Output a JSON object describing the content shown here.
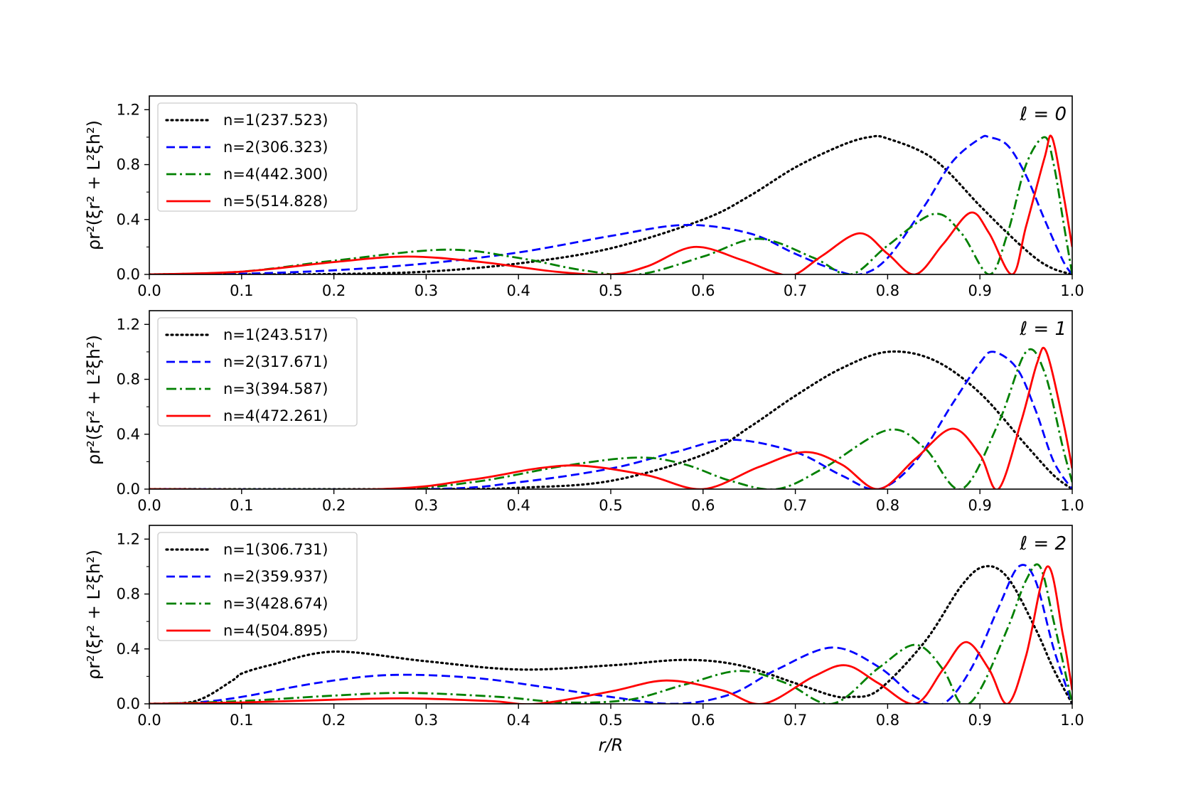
{
  "chart_data": [
    {
      "type": "line",
      "annotation": "ℓ = 0",
      "ylabel": "ρr²(ξr² + L²ξh²)",
      "xlabel": "",
      "xlim": [
        0.0,
        1.0
      ],
      "ylim": [
        0.0,
        1.3
      ],
      "xticks": [
        "0.0",
        "0.1",
        "0.2",
        "0.3",
        "0.4",
        "0.5",
        "0.6",
        "0.7",
        "0.8",
        "0.9",
        "1.0"
      ],
      "yticks": [
        "0.0",
        "0.4",
        "0.8",
        "1.2"
      ],
      "legend": "top-left",
      "series": [
        {
          "name": "n=1(237.523)",
          "color": "#000000",
          "style": "dotted",
          "x": [
            0.0,
            0.1,
            0.2,
            0.3,
            0.4,
            0.5,
            0.6,
            0.65,
            0.7,
            0.75,
            0.78,
            0.8,
            0.85,
            0.9,
            0.93,
            0.96,
            0.98,
            1.0
          ],
          "y": [
            0.0,
            0.0,
            0.003,
            0.02,
            0.08,
            0.19,
            0.4,
            0.57,
            0.78,
            0.94,
            1.0,
            0.99,
            0.84,
            0.5,
            0.3,
            0.12,
            0.04,
            0.0
          ]
        },
        {
          "name": "n=2(306.323)",
          "color": "#0000ff",
          "style": "dashed",
          "x": [
            0.0,
            0.1,
            0.2,
            0.3,
            0.4,
            0.5,
            0.58,
            0.65,
            0.7,
            0.74,
            0.77,
            0.8,
            0.84,
            0.87,
            0.9,
            0.91,
            0.93,
            0.95,
            0.97,
            0.99,
            1.0
          ],
          "y": [
            0.0,
            0.005,
            0.03,
            0.08,
            0.16,
            0.28,
            0.36,
            0.3,
            0.15,
            0.04,
            0.0,
            0.12,
            0.5,
            0.82,
            0.99,
            1.0,
            0.94,
            0.72,
            0.4,
            0.1,
            0.0
          ]
        },
        {
          "name": "n=4(442.300)",
          "color": "#008000",
          "style": "dashdot",
          "x": [
            0.0,
            0.1,
            0.2,
            0.32,
            0.4,
            0.47,
            0.53,
            0.6,
            0.66,
            0.72,
            0.76,
            0.8,
            0.85,
            0.88,
            0.91,
            0.93,
            0.95,
            0.97,
            0.98,
            0.99,
            1.0
          ],
          "y": [
            0.0,
            0.02,
            0.1,
            0.18,
            0.12,
            0.03,
            0.0,
            0.13,
            0.26,
            0.12,
            0.0,
            0.21,
            0.44,
            0.3,
            0.0,
            0.3,
            0.8,
            1.0,
            0.8,
            0.4,
            0.0
          ]
        },
        {
          "name": "n=5(514.828)",
          "color": "#ff0000",
          "style": "solid",
          "x": [
            0.0,
            0.1,
            0.2,
            0.28,
            0.36,
            0.44,
            0.5,
            0.54,
            0.59,
            0.64,
            0.68,
            0.7,
            0.73,
            0.77,
            0.8,
            0.83,
            0.86,
            0.89,
            0.91,
            0.935,
            0.95,
            0.97,
            0.978,
            0.99,
            1.0
          ],
          "y": [
            0.0,
            0.02,
            0.09,
            0.13,
            0.09,
            0.02,
            0.0,
            0.06,
            0.2,
            0.11,
            0.01,
            0.0,
            0.14,
            0.3,
            0.15,
            0.0,
            0.22,
            0.45,
            0.3,
            0.0,
            0.35,
            0.85,
            1.0,
            0.6,
            0.2
          ]
        }
      ]
    },
    {
      "type": "line",
      "annotation": "ℓ = 1",
      "ylabel": "ρr²(ξr² + L²ξh²)",
      "xlabel": "",
      "xlim": [
        0.0,
        1.0
      ],
      "ylim": [
        0.0,
        1.3
      ],
      "xticks": [
        "0.0",
        "0.1",
        "0.2",
        "0.3",
        "0.4",
        "0.5",
        "0.6",
        "0.7",
        "0.8",
        "0.9",
        "1.0"
      ],
      "yticks": [
        "0.0",
        "0.4",
        "0.8",
        "1.2"
      ],
      "legend": "top-left",
      "series": [
        {
          "name": "n=1(243.517)",
          "color": "#000000",
          "style": "dotted",
          "x": [
            0.0,
            0.3,
            0.4,
            0.5,
            0.6,
            0.65,
            0.7,
            0.75,
            0.8,
            0.85,
            0.9,
            0.95,
            0.98,
            1.0
          ],
          "y": [
            0.0,
            0.0,
            0.01,
            0.06,
            0.25,
            0.45,
            0.68,
            0.88,
            1.0,
            0.94,
            0.7,
            0.32,
            0.1,
            0.0
          ]
        },
        {
          "name": "n=2(317.671)",
          "color": "#0000ff",
          "style": "dashed",
          "x": [
            0.0,
            0.3,
            0.4,
            0.5,
            0.57,
            0.63,
            0.7,
            0.75,
            0.79,
            0.83,
            0.87,
            0.9,
            0.915,
            0.94,
            0.96,
            0.98,
            1.0
          ],
          "y": [
            0.0,
            0.0,
            0.05,
            0.15,
            0.27,
            0.36,
            0.27,
            0.1,
            0.0,
            0.2,
            0.62,
            0.92,
            1.0,
            0.88,
            0.58,
            0.2,
            0.0
          ]
        },
        {
          "name": "n=3(394.587)",
          "color": "#008000",
          "style": "dashdot",
          "x": [
            0.0,
            0.25,
            0.35,
            0.45,
            0.53,
            0.58,
            0.63,
            0.68,
            0.73,
            0.8,
            0.84,
            0.88,
            0.92,
            0.95,
            0.97,
            0.99,
            1.0
          ],
          "y": [
            0.0,
            0.0,
            0.05,
            0.17,
            0.23,
            0.18,
            0.06,
            0.0,
            0.15,
            0.43,
            0.3,
            0.0,
            0.48,
            1.0,
            0.85,
            0.3,
            0.05
          ]
        },
        {
          "name": "n=4(472.261)",
          "color": "#ff0000",
          "style": "solid",
          "x": [
            0.0,
            0.25,
            0.35,
            0.42,
            0.47,
            0.54,
            0.6,
            0.66,
            0.71,
            0.75,
            0.79,
            0.83,
            0.87,
            0.9,
            0.92,
            0.945,
            0.962,
            0.972,
            0.99,
            1.0
          ],
          "y": [
            0.0,
            0.0,
            0.07,
            0.15,
            0.17,
            0.1,
            0.0,
            0.16,
            0.27,
            0.18,
            0.0,
            0.22,
            0.44,
            0.25,
            0.0,
            0.5,
            0.92,
            1.0,
            0.5,
            0.15
          ]
        }
      ]
    },
    {
      "type": "line",
      "annotation": "ℓ = 2",
      "ylabel": "ρr²(ξr² + L²ξh²)",
      "xlabel": "r/R",
      "xlim": [
        0.0,
        1.0
      ],
      "ylim": [
        0.0,
        1.3
      ],
      "xticks": [
        "0.0",
        "0.1",
        "0.2",
        "0.3",
        "0.4",
        "0.5",
        "0.6",
        "0.7",
        "0.8",
        "0.9",
        "1.0"
      ],
      "yticks": [
        "0.0",
        "0.4",
        "0.8",
        "1.2"
      ],
      "legend": "top-left",
      "series": [
        {
          "name": "n=1(306.731)",
          "color": "#000000",
          "style": "dotted",
          "x": [
            0.0,
            0.05,
            0.09,
            0.1,
            0.13,
            0.2,
            0.3,
            0.4,
            0.5,
            0.58,
            0.64,
            0.7,
            0.74,
            0.76,
            0.79,
            0.84,
            0.88,
            0.905,
            0.93,
            0.96,
            0.98,
            1.0
          ],
          "y": [
            0.0,
            0.02,
            0.17,
            0.22,
            0.28,
            0.38,
            0.31,
            0.25,
            0.28,
            0.32,
            0.28,
            0.15,
            0.06,
            0.05,
            0.1,
            0.45,
            0.86,
            1.0,
            0.92,
            0.55,
            0.25,
            0.0
          ]
        },
        {
          "name": "n=2(359.937)",
          "color": "#0000ff",
          "style": "dashed",
          "x": [
            0.0,
            0.05,
            0.1,
            0.18,
            0.26,
            0.35,
            0.43,
            0.5,
            0.57,
            0.63,
            0.68,
            0.74,
            0.79,
            0.83,
            0.86,
            0.89,
            0.92,
            0.942,
            0.96,
            0.98,
            1.0
          ],
          "y": [
            0.0,
            0.01,
            0.05,
            0.15,
            0.21,
            0.19,
            0.12,
            0.05,
            0.0,
            0.07,
            0.25,
            0.41,
            0.27,
            0.05,
            0.0,
            0.25,
            0.7,
            1.0,
            0.9,
            0.4,
            0.0
          ]
        },
        {
          "name": "n=3(428.674)",
          "color": "#008000",
          "style": "dashdot",
          "x": [
            0.0,
            0.1,
            0.2,
            0.28,
            0.38,
            0.45,
            0.52,
            0.58,
            0.64,
            0.69,
            0.74,
            0.79,
            0.83,
            0.86,
            0.88,
            0.9,
            0.93,
            0.95,
            0.965,
            0.98,
            1.0
          ],
          "y": [
            0.0,
            0.02,
            0.06,
            0.08,
            0.05,
            0.01,
            0.03,
            0.14,
            0.24,
            0.15,
            0.0,
            0.26,
            0.43,
            0.25,
            0.0,
            0.1,
            0.55,
            0.9,
            1.0,
            0.6,
            0.0
          ]
        },
        {
          "name": "n=4(504.895)",
          "color": "#ff0000",
          "style": "solid",
          "x": [
            0.0,
            0.1,
            0.2,
            0.28,
            0.37,
            0.42,
            0.5,
            0.56,
            0.62,
            0.665,
            0.72,
            0.755,
            0.79,
            0.83,
            0.86,
            0.885,
            0.91,
            0.93,
            0.95,
            0.973,
            0.99,
            1.0
          ],
          "y": [
            0.0,
            0.01,
            0.03,
            0.04,
            0.02,
            0.0,
            0.09,
            0.17,
            0.1,
            0.0,
            0.2,
            0.28,
            0.15,
            0.0,
            0.25,
            0.45,
            0.25,
            0.0,
            0.35,
            1.0,
            0.5,
            0.1
          ]
        }
      ]
    }
  ]
}
